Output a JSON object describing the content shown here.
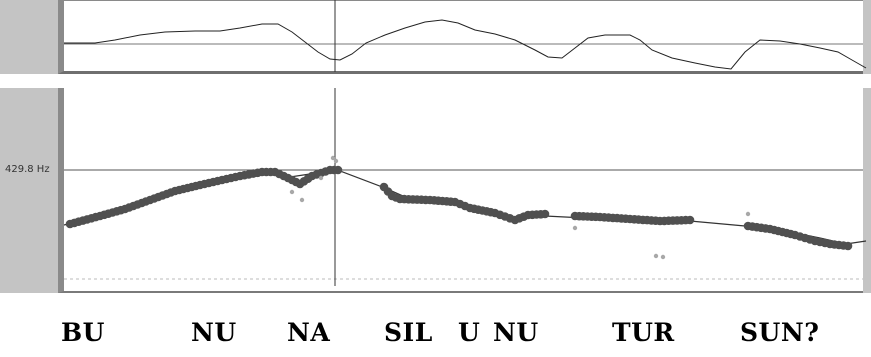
{
  "pitch_panel": {
    "reference_label": "429.8 Hz"
  },
  "syllables": [
    "BU",
    "NU",
    "NA",
    "SIL",
    "U",
    "NU",
    "TUR",
    "SUN?"
  ],
  "colors": {
    "background": "#ffffff",
    "gutter": "#c4c4c4",
    "pitch_points": "#505050",
    "stray_points": "#a8a8a8",
    "curve": "#333333",
    "gridline": "#555555"
  }
}
